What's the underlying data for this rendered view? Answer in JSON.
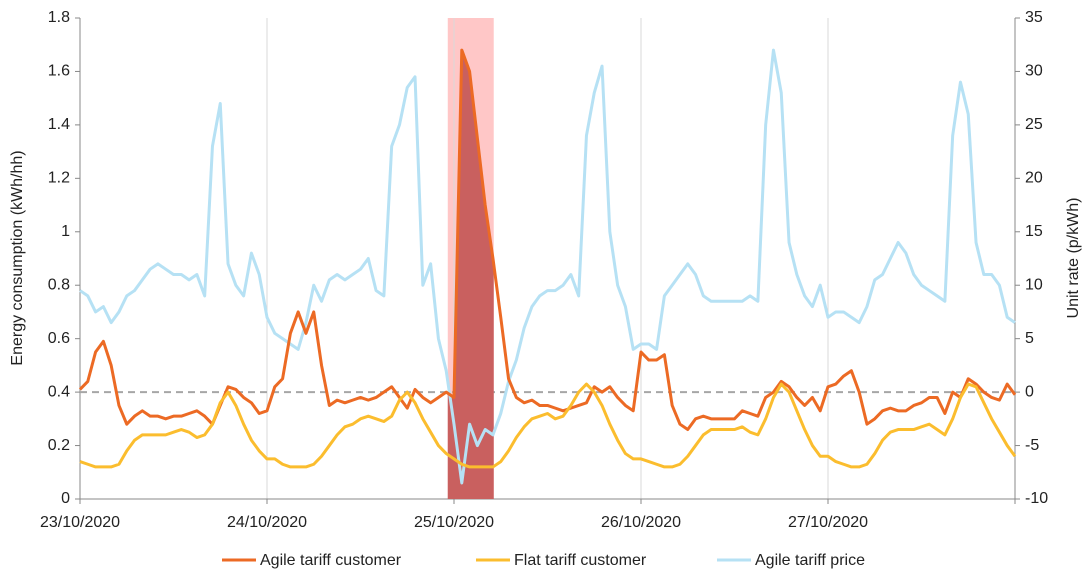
{
  "chart_data": {
    "type": "line",
    "y_label": "Energy consumption (kWh/hh)",
    "y2_label": "Unit rate (p/kWh)",
    "x": [
      0,
      1,
      2,
      3,
      4,
      5,
      6,
      7,
      8,
      9,
      10,
      11,
      12,
      13,
      14,
      15,
      16,
      17,
      18,
      19,
      20,
      21,
      22,
      23,
      24,
      25,
      26,
      27,
      28,
      29,
      30,
      31,
      32,
      33,
      34,
      35,
      36,
      37,
      38,
      39,
      40,
      41,
      42,
      43,
      44,
      45,
      46,
      47,
      48,
      49,
      50,
      51,
      52,
      53,
      54,
      55,
      56,
      57,
      58,
      59,
      60,
      61,
      62,
      63,
      64,
      65,
      66,
      67,
      68,
      69,
      70,
      71,
      72,
      73,
      74,
      75,
      76,
      77,
      78,
      79,
      80,
      81,
      82,
      83,
      84,
      85,
      86,
      87,
      88,
      89,
      90,
      91,
      92,
      93,
      94,
      95,
      96,
      97,
      98,
      99,
      100,
      101,
      102,
      103,
      104,
      105,
      106,
      107,
      108,
      109,
      110,
      111,
      112,
      113,
      114,
      115,
      116,
      117,
      118,
      119,
      120
    ],
    "xlim": [
      0,
      120
    ],
    "xticks": [
      {
        "value": 0,
        "label": "23/10/2020"
      },
      {
        "value": 24,
        "label": "24/10/2020"
      },
      {
        "value": 48,
        "label": "25/10/2020"
      },
      {
        "value": 72,
        "label": "26/10/2020"
      },
      {
        "value": 96,
        "label": "27/10/2020"
      },
      {
        "value": 120,
        "label": null
      }
    ],
    "ylim": [
      0,
      1.8
    ],
    "yticks": [
      0,
      0.2,
      0.4,
      0.6,
      0.8,
      1,
      1.2,
      1.4,
      1.6,
      1.8
    ],
    "y2lim": [
      -10,
      35
    ],
    "y2ticks": [
      -10,
      -5,
      0,
      5,
      10,
      15,
      20,
      25,
      30,
      35
    ],
    "grid": "x",
    "legend": "bottom",
    "highlight_x": [
      47.2,
      53.1
    ],
    "series": [
      {
        "name": "Agile tariff customer",
        "color": "#ec6a24",
        "values": [
          0.41,
          0.44,
          0.55,
          0.59,
          0.5,
          0.35,
          0.28,
          0.31,
          0.33,
          0.31,
          0.31,
          0.3,
          0.31,
          0.31,
          0.32,
          0.33,
          0.31,
          0.28,
          0.35,
          0.42,
          0.41,
          0.38,
          0.36,
          0.32,
          0.33,
          0.42,
          0.45,
          0.62,
          0.7,
          0.62,
          0.7,
          0.5,
          0.35,
          0.37,
          0.36,
          0.37,
          0.38,
          0.37,
          0.38,
          0.4,
          0.42,
          0.38,
          0.34,
          0.41,
          0.38,
          0.36,
          0.38,
          0.4,
          0.38,
          1.68,
          1.6,
          1.35,
          1.1,
          0.9,
          0.68,
          0.45,
          0.38,
          0.36,
          0.37,
          0.35,
          0.35,
          0.34,
          0.33,
          0.34,
          0.35,
          0.36,
          0.42,
          0.4,
          0.42,
          0.38,
          0.35,
          0.33,
          0.55,
          0.52,
          0.52,
          0.54,
          0.35,
          0.28,
          0.26,
          0.3,
          0.31,
          0.3,
          0.3,
          0.3,
          0.3,
          0.33,
          0.32,
          0.31,
          0.38,
          0.4,
          0.44,
          0.42,
          0.38,
          0.35,
          0.38,
          0.33,
          0.42,
          0.43,
          0.46,
          0.48,
          0.4,
          0.28,
          0.3,
          0.33,
          0.34,
          0.33,
          0.33,
          0.35,
          0.36,
          0.38,
          0.38,
          0.32,
          0.4,
          0.38,
          0.45,
          0.43,
          0.4,
          0.38,
          0.37,
          0.43,
          0.39
        ]
      },
      {
        "name": "Flat tariff customer",
        "color": "#fbbd2e",
        "values": [
          0.14,
          0.13,
          0.12,
          0.12,
          0.12,
          0.13,
          0.18,
          0.22,
          0.24,
          0.24,
          0.24,
          0.24,
          0.25,
          0.26,
          0.25,
          0.23,
          0.24,
          0.28,
          0.36,
          0.4,
          0.35,
          0.28,
          0.22,
          0.18,
          0.15,
          0.15,
          0.13,
          0.12,
          0.12,
          0.12,
          0.13,
          0.16,
          0.2,
          0.24,
          0.27,
          0.28,
          0.3,
          0.31,
          0.3,
          0.29,
          0.31,
          0.37,
          0.4,
          0.36,
          0.3,
          0.25,
          0.2,
          0.17,
          0.15,
          0.13,
          0.12,
          0.12,
          0.12,
          0.12,
          0.14,
          0.18,
          0.23,
          0.27,
          0.3,
          0.31,
          0.32,
          0.3,
          0.31,
          0.35,
          0.4,
          0.43,
          0.4,
          0.35,
          0.28,
          0.22,
          0.17,
          0.15,
          0.15,
          0.14,
          0.13,
          0.12,
          0.12,
          0.13,
          0.16,
          0.2,
          0.24,
          0.26,
          0.26,
          0.26,
          0.26,
          0.27,
          0.25,
          0.24,
          0.3,
          0.38,
          0.43,
          0.4,
          0.33,
          0.26,
          0.2,
          0.16,
          0.16,
          0.14,
          0.13,
          0.12,
          0.12,
          0.13,
          0.17,
          0.22,
          0.25,
          0.26,
          0.26,
          0.26,
          0.27,
          0.28,
          0.26,
          0.24,
          0.3,
          0.38,
          0.43,
          0.42,
          0.36,
          0.3,
          0.25,
          0.2,
          0.16
        ]
      },
      {
        "name": "Agile tariff price",
        "color": "#b6e1f4",
        "axis": "y2",
        "values": [
          9.5,
          9,
          7.5,
          8,
          6.5,
          7.5,
          9,
          9.5,
          10.5,
          11.5,
          12,
          11.5,
          11,
          11,
          10.5,
          11,
          9,
          23,
          27,
          12,
          10,
          9,
          13,
          11,
          7,
          5.5,
          5,
          4.5,
          4,
          6.5,
          10,
          8.5,
          10.5,
          11,
          10.5,
          11,
          11.5,
          12.5,
          9.5,
          9,
          23,
          25,
          28.5,
          29.5,
          10,
          12,
          5,
          2,
          -3,
          -8.5,
          -3,
          -5,
          -3.5,
          -4,
          -2,
          1,
          3,
          6,
          8,
          9,
          9.5,
          9.5,
          10,
          11,
          9,
          24,
          28,
          30.5,
          15,
          10,
          8,
          4,
          4.5,
          4.5,
          4,
          9,
          10,
          11,
          12,
          11,
          9,
          8.5,
          8.5,
          8.5,
          8.5,
          8.5,
          9,
          8.5,
          25,
          32,
          28,
          14,
          11,
          9,
          8,
          10,
          7,
          7.5,
          7.5,
          7,
          6.5,
          8,
          10.5,
          11,
          12.5,
          14,
          13,
          11,
          10,
          9.5,
          9,
          8.5,
          24,
          29,
          26,
          14,
          11,
          11,
          10,
          7,
          6.5
        ]
      }
    ]
  }
}
